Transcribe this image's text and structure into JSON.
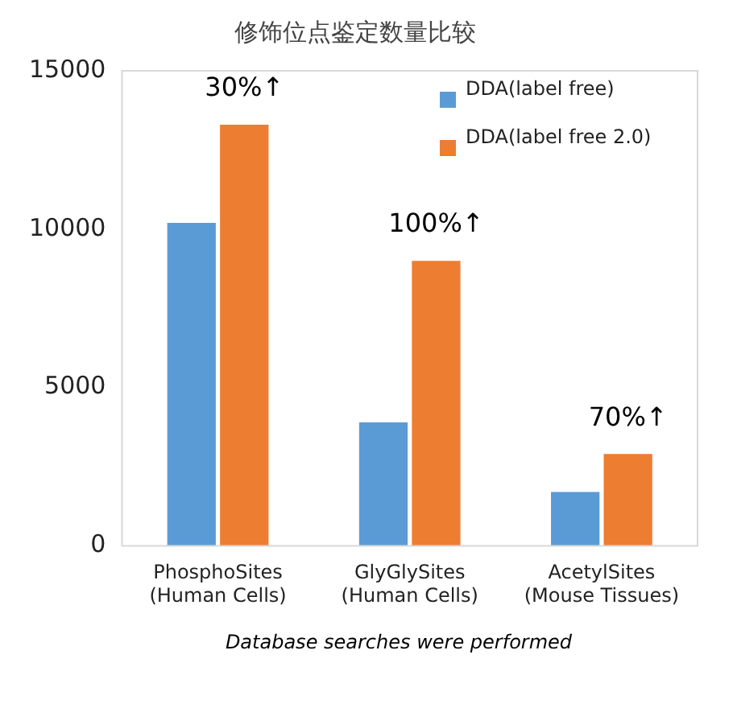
{
  "chart_data": {
    "type": "bar",
    "title": "修饰位点鉴定数量比较",
    "categories": [
      "PhosphoSites\n(Human Cells)",
      "GlyGlySites\n(Human Cells)",
      "AcetylSites\n(Mouse Tissues)"
    ],
    "series": [
      {
        "name": "DDA(label free)",
        "color": "#5b9bd5",
        "values": [
          10200,
          3900,
          1700
        ]
      },
      {
        "name": "DDA(label free 2.0)",
        "color": "#ed7d31",
        "values": [
          13300,
          9000,
          2900
        ]
      }
    ],
    "ylim": [
      0,
      15000
    ],
    "yticks": [
      0,
      5000,
      10000,
      15000
    ],
    "grid": false,
    "legend": "top right",
    "annotations": [
      "30%↑",
      "100%↑",
      "70%↑",
      "Database searches were performed"
    ]
  }
}
